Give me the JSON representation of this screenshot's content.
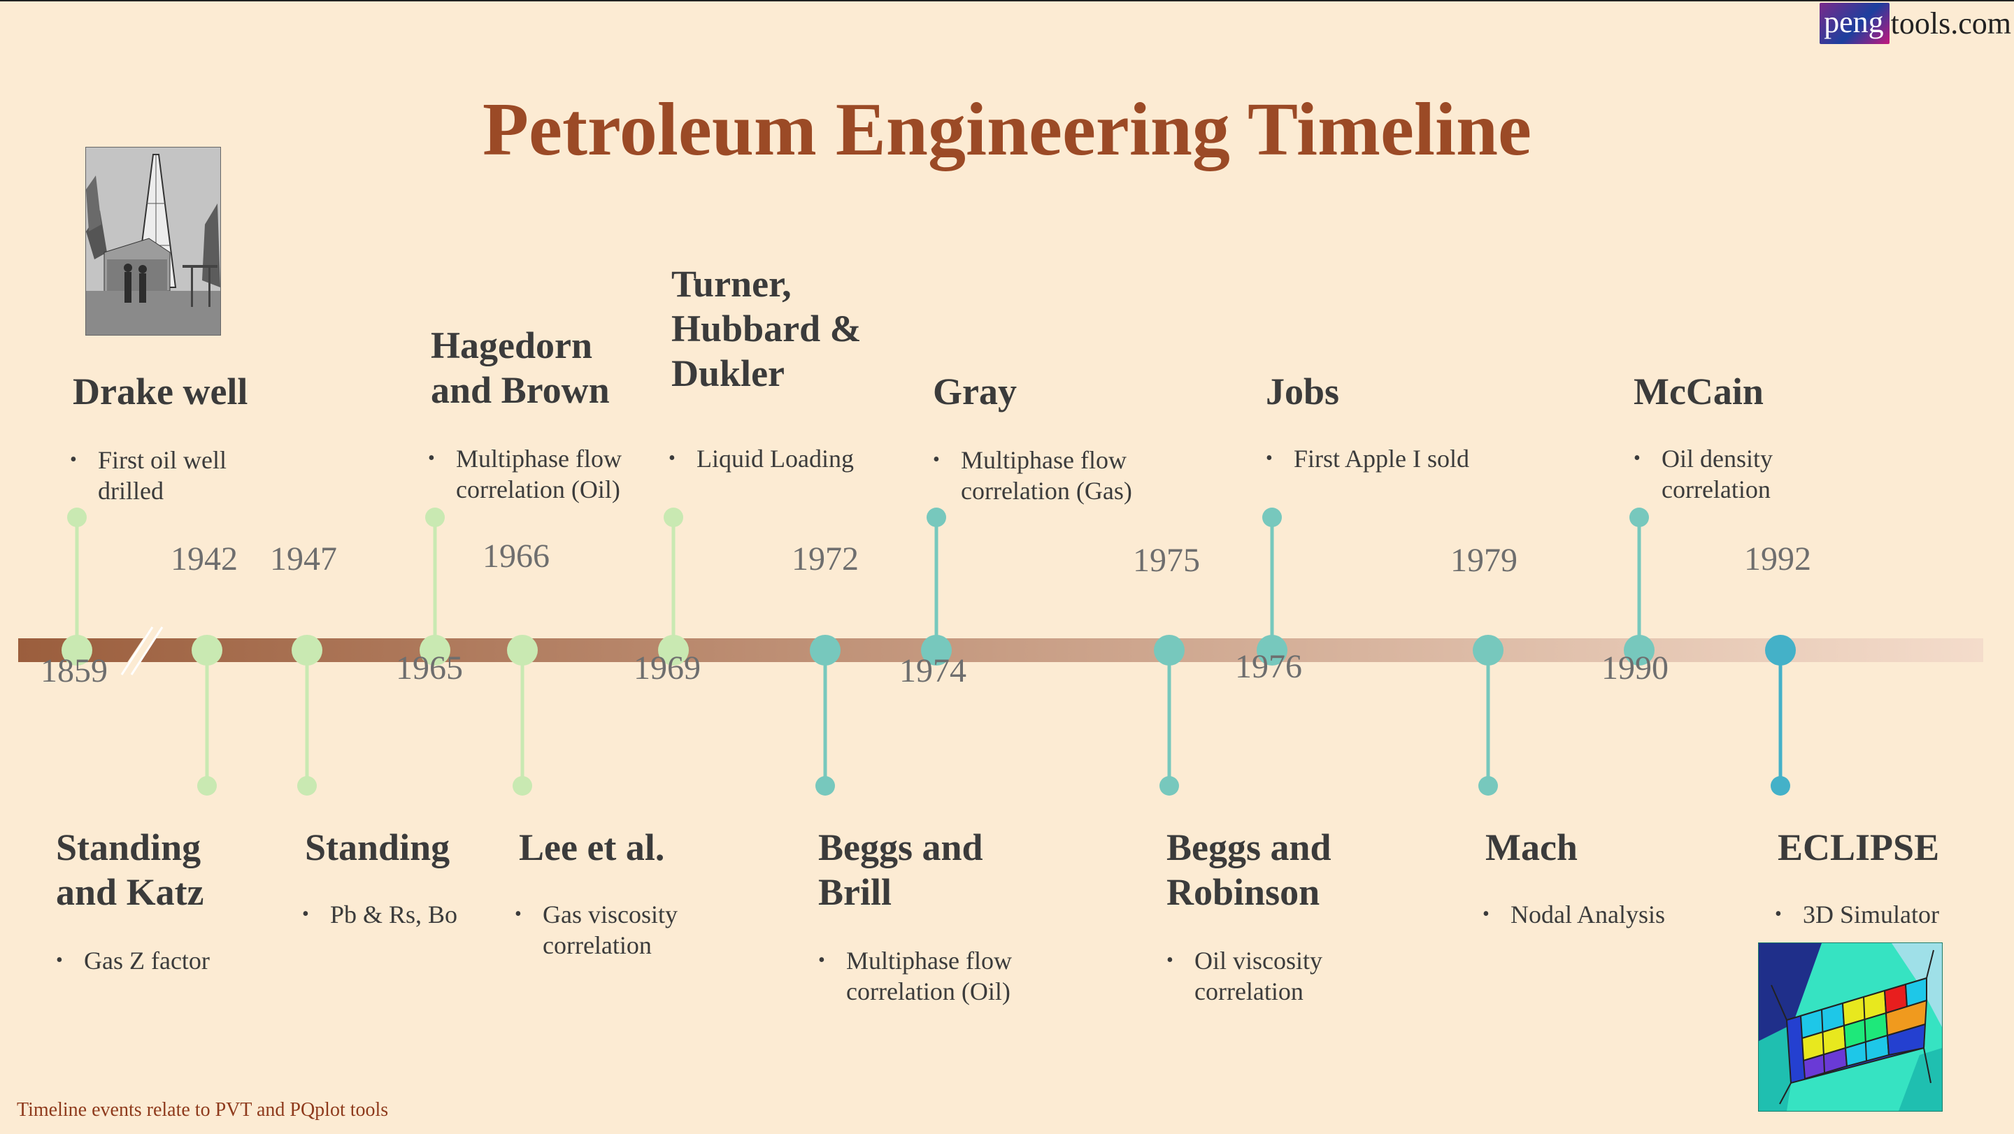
{
  "header": {
    "title": "Petroleum Engineering Timeline",
    "brand_prefix": "peng",
    "brand_suffix": "tools.com"
  },
  "footnote": "Timeline events relate to PVT and PQplot tools",
  "colors": {
    "title": "#9b4a26",
    "background": "#fcebd3",
    "axis_start": "#9b5e3d",
    "axis_end": "#f4dccb",
    "stem_light_green": "#c9e9b2",
    "stem_teal": "#77c8bd",
    "stem_blue": "#44b1c8",
    "footnote": "#8e3a1c"
  },
  "axis_break_after": "1859",
  "events": [
    {
      "year": "1859",
      "position": "above",
      "color": "#c9e9b2",
      "title": "Drake well",
      "bullets": [
        "First oil well\ndrilled"
      ],
      "image": "oil-derrick-photo"
    },
    {
      "year": "1942",
      "position": "below",
      "color": "#c9e9b2",
      "title": "Standing\nand Katz",
      "bullets": [
        "Gas Z factor"
      ]
    },
    {
      "year": "1947",
      "position": "below",
      "color": "#c9e9b2",
      "title": "Standing",
      "bullets": [
        "Pb & Rs, Bo"
      ]
    },
    {
      "year": "1965",
      "position": "above",
      "color": "#c9e9b2",
      "title": "Hagedorn\nand Brown",
      "bullets": [
        "Multiphase flow\ncorrelation (Oil)"
      ]
    },
    {
      "year": "1966",
      "position": "below",
      "color": "#c9e9b2",
      "title": "Lee et al.",
      "bullets": [
        "Gas viscosity\ncorrelation"
      ]
    },
    {
      "year": "1969",
      "position": "above",
      "color": "#c9e9b2",
      "title": "Turner,\nHubbard &\nDukler",
      "bullets": [
        "Liquid Loading"
      ]
    },
    {
      "year": "1972",
      "position": "below",
      "color": "#77c8bd",
      "title": "Beggs and\nBrill",
      "bullets": [
        "Multiphase flow\ncorrelation (Oil)"
      ]
    },
    {
      "year": "1974",
      "position": "above",
      "color": "#77c8bd",
      "title": "Gray",
      "bullets": [
        "Multiphase flow\ncorrelation (Gas)"
      ]
    },
    {
      "year": "1975",
      "position": "below",
      "color": "#77c8bd",
      "title": "Beggs and\nRobinson",
      "bullets": [
        "Oil viscosity\ncorrelation"
      ]
    },
    {
      "year": "1976",
      "position": "above",
      "color": "#77c8bd",
      "title": "Jobs",
      "bullets": [
        "First Apple I sold"
      ]
    },
    {
      "year": "1979",
      "position": "below",
      "color": "#77c8bd",
      "title": "Mach",
      "bullets": [
        "Nodal Analysis"
      ]
    },
    {
      "year": "1990",
      "position": "above",
      "color": "#77c8bd",
      "title": "McCain",
      "bullets": [
        "Oil density\ncorrelation"
      ]
    },
    {
      "year": "1992",
      "position": "below",
      "color": "#44b1c8",
      "title": "ECLIPSE",
      "bullets": [
        "3D Simulator"
      ],
      "image": "3d-grid-simulation-render"
    }
  ]
}
